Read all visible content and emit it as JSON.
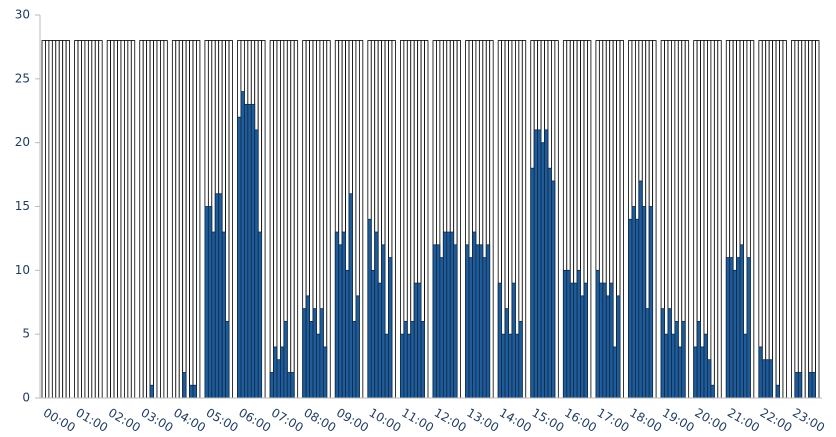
{
  "chart_data": {
    "type": "bar",
    "categories": [
      "00:00",
      "01:00",
      "02:00",
      "03:00",
      "04:00",
      "05:00",
      "06:00",
      "07:00",
      "08:00",
      "09:00",
      "10:00",
      "11:00",
      "12:00",
      "13:00",
      "14:00",
      "15:00",
      "16:00",
      "17:00",
      "18:00",
      "19:00",
      "20:00",
      "21:00",
      "22:00",
      "23:00"
    ],
    "series": [
      {
        "color": "#ffffff",
        "stroke": "#000000",
        "values": [
          [
            28,
            28,
            28,
            28,
            28,
            28,
            28,
            28
          ],
          [
            28,
            28,
            28,
            28,
            28,
            28,
            28,
            28
          ],
          [
            28,
            28,
            28,
            28,
            28,
            28,
            28,
            28
          ],
          [
            28,
            28,
            28,
            28,
            28,
            28,
            28,
            28
          ],
          [
            28,
            28,
            28,
            28,
            28,
            28,
            28,
            28
          ],
          [
            28,
            28,
            28,
            28,
            28,
            28,
            28,
            28
          ],
          [
            28,
            28,
            28,
            28,
            28,
            28,
            28,
            28
          ],
          [
            28,
            28,
            28,
            28,
            28,
            28,
            28,
            28
          ],
          [
            28,
            28,
            28,
            28,
            28,
            28,
            28,
            28
          ],
          [
            28,
            28,
            28,
            28,
            28,
            28,
            28,
            28
          ],
          [
            28,
            28,
            28,
            28,
            28,
            28,
            28,
            28
          ],
          [
            28,
            28,
            28,
            28,
            28,
            28,
            28,
            28
          ],
          [
            28,
            28,
            28,
            28,
            28,
            28,
            28,
            28
          ],
          [
            28,
            28,
            28,
            28,
            28,
            28,
            28,
            28
          ],
          [
            28,
            28,
            28,
            28,
            28,
            28,
            28,
            28
          ],
          [
            28,
            28,
            28,
            28,
            28,
            28,
            28,
            28
          ],
          [
            28,
            28,
            28,
            28,
            28,
            28,
            28,
            28
          ],
          [
            28,
            28,
            28,
            28,
            28,
            28,
            28,
            28
          ],
          [
            28,
            28,
            28,
            28,
            28,
            28,
            28,
            28
          ],
          [
            28,
            28,
            28,
            28,
            28,
            28,
            28,
            28
          ],
          [
            28,
            28,
            28,
            28,
            28,
            28,
            28,
            28
          ],
          [
            28,
            28,
            28,
            28,
            28,
            28,
            28,
            28
          ],
          [
            28,
            28,
            28,
            28,
            28,
            28,
            28,
            28
          ],
          [
            28,
            28,
            28,
            28,
            28,
            28,
            28,
            28
          ]
        ]
      },
      {
        "color": "#1f5c99",
        "stroke": "#0d2a4a",
        "values": [
          [
            0,
            0,
            0,
            0,
            0,
            0,
            0,
            0
          ],
          [
            0,
            0,
            0,
            0,
            0,
            0,
            0,
            0
          ],
          [
            0,
            0,
            0,
            0,
            0,
            0,
            0,
            0
          ],
          [
            0,
            0,
            0,
            1,
            0,
            0,
            0,
            0
          ],
          [
            0,
            0,
            0,
            2,
            0,
            1,
            1,
            0
          ],
          [
            15,
            15,
            13,
            16,
            16,
            13,
            6,
            0
          ],
          [
            22,
            24,
            23,
            23,
            23,
            21,
            13,
            0
          ],
          [
            2,
            4,
            3,
            4,
            6,
            2,
            2,
            0
          ],
          [
            7,
            8,
            6,
            7,
            5,
            7,
            4,
            0
          ],
          [
            13,
            12,
            13,
            10,
            16,
            6,
            8,
            0
          ],
          [
            14,
            10,
            13,
            9,
            12,
            5,
            11,
            0
          ],
          [
            5,
            6,
            5,
            6,
            9,
            9,
            6,
            0
          ],
          [
            12,
            12,
            11,
            13,
            13,
            13,
            12,
            0
          ],
          [
            12,
            11,
            13,
            12,
            12,
            11,
            12,
            0
          ],
          [
            9,
            5,
            7,
            5,
            9,
            5,
            6,
            0
          ],
          [
            18,
            21,
            21,
            20,
            21,
            18,
            17,
            0
          ],
          [
            10,
            10,
            9,
            9,
            10,
            8,
            9,
            0
          ],
          [
            10,
            9,
            9,
            8,
            9,
            4,
            8,
            0
          ],
          [
            14,
            15,
            14,
            17,
            15,
            7,
            15,
            0
          ],
          [
            7,
            5,
            7,
            5,
            6,
            4,
            6,
            0
          ],
          [
            4,
            6,
            4,
            5,
            3,
            1,
            0,
            0
          ],
          [
            11,
            11,
            10,
            11,
            12,
            5,
            11,
            0
          ],
          [
            4,
            3,
            3,
            3,
            0,
            1,
            0,
            0
          ],
          [
            0,
            2,
            2,
            0,
            0,
            2,
            2,
            0
          ]
        ]
      }
    ],
    "ylim": [
      0,
      30
    ],
    "yticks": [
      0,
      5,
      10,
      15,
      20,
      25,
      30
    ]
  }
}
